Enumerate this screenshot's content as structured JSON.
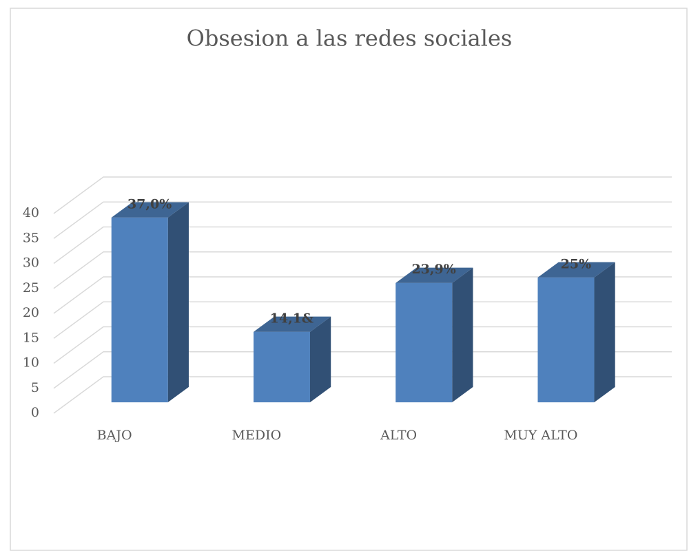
{
  "chart_data": {
    "type": "bar3d",
    "title": "Obsesion a las redes sociales",
    "categories": [
      "BAJO",
      "MEDIO",
      "ALTO",
      "MUY ALTO"
    ],
    "values": [
      37.0,
      14.1,
      23.9,
      25
    ],
    "value_labels": [
      "37,0%",
      "14,1&",
      "23,9%",
      "25%"
    ],
    "color": "#4f81bd",
    "ylim": [
      0,
      40
    ],
    "yticks": [
      0,
      5,
      10,
      15,
      20,
      25,
      30,
      35,
      40
    ],
    "grid": true
  }
}
